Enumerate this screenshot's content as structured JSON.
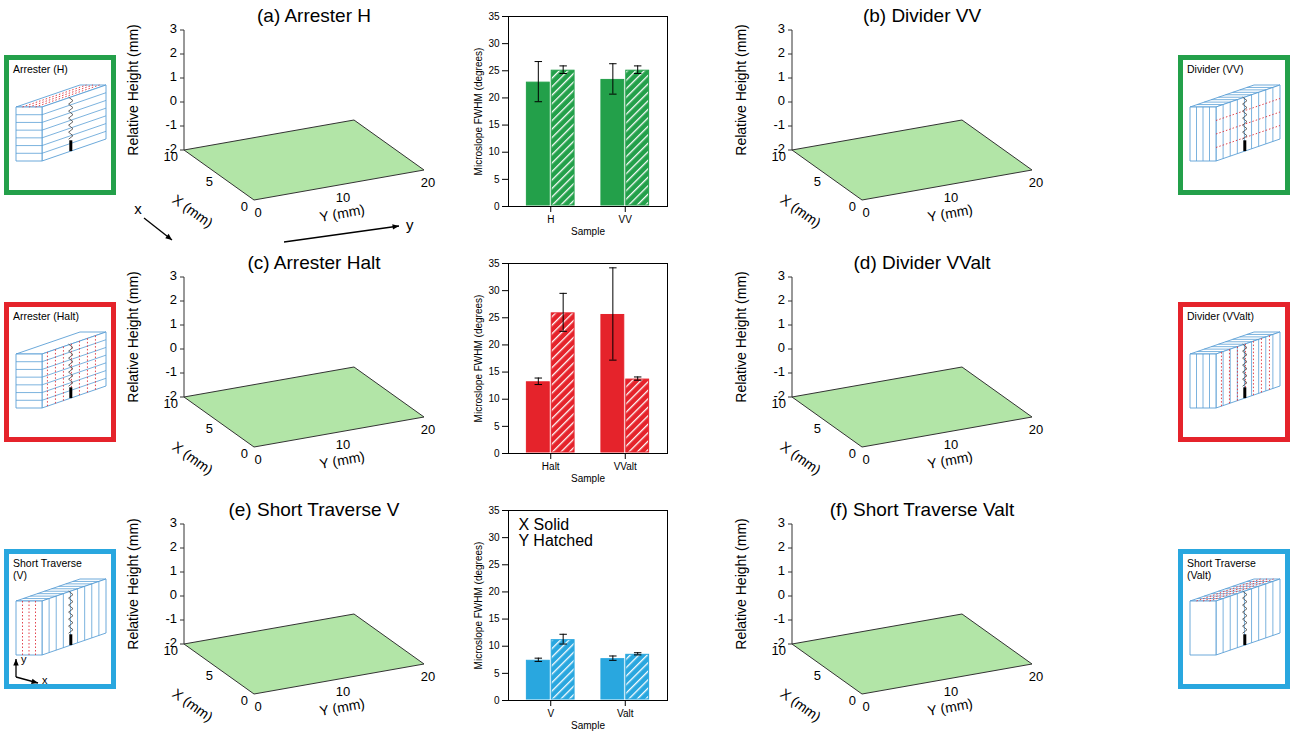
{
  "chart_data": [
    {
      "type": "bar",
      "categories": [
        "H",
        "VV"
      ],
      "xlabel": "Sample",
      "ylabel": "Microslope FWHM (degrees)",
      "ylim": [
        0,
        35
      ],
      "yticks": [
        0,
        5,
        10,
        15,
        20,
        25,
        30,
        35
      ],
      "series": [
        {
          "color": "#23a04a",
          "values": [
            23.0,
            23.5
          ],
          "errors": [
            3.7,
            2.8
          ]
        },
        {
          "color": "#23a04a",
          "values": [
            25.2,
            25.2
          ],
          "errors": [
            0.7,
            0.7
          ]
        }
      ]
    },
    {
      "type": "bar",
      "categories": [
        "Halt",
        "VValt"
      ],
      "xlabel": "Sample",
      "ylabel": "Microslope FWHM (degrees)",
      "ylim": [
        0,
        35
      ],
      "yticks": [
        0,
        5,
        10,
        15,
        20,
        25,
        30,
        35
      ],
      "series": [
        {
          "color": "#e5232b",
          "values": [
            13.3,
            25.7
          ],
          "errors": [
            0.6,
            8.5
          ]
        },
        {
          "color": "#e5232b",
          "values": [
            26.0,
            13.8
          ],
          "errors": [
            3.5,
            0.3
          ]
        }
      ]
    },
    {
      "type": "bar",
      "categories": [
        "V",
        "Valt"
      ],
      "xlabel": "Sample",
      "ylabel": "Microslope FWHM (degrees)",
      "ylim": [
        0,
        35
      ],
      "yticks": [
        0,
        5,
        10,
        15,
        20,
        25,
        30,
        35
      ],
      "annotation": [
        "X Solid",
        "Y Hatched"
      ],
      "series": [
        {
          "color": "#29a7df",
          "values": [
            7.5,
            7.8
          ],
          "errors": [
            0.3,
            0.4
          ]
        },
        {
          "color": "#29a7df",
          "values": [
            11.3,
            8.6
          ],
          "errors": [
            0.9,
            0.2
          ]
        }
      ]
    }
  ],
  "surface_panels": [
    {
      "title": "(a) Arrester H",
      "zlabel": "Relative Height (mm)",
      "zlim": [
        -2,
        3
      ],
      "zticks": [
        -2,
        -1,
        0,
        1,
        2,
        3
      ],
      "xlabel": "X (mm)",
      "xlim": [
        0,
        10
      ],
      "xticks": [
        0,
        5,
        10
      ],
      "ylabel": "Y (mm)",
      "ylim": [
        0,
        20
      ],
      "yticks": [
        0,
        10,
        20
      ],
      "axis_labels": {
        "x": "x",
        "y": "y"
      }
    },
    {
      "title": "(b) Divider VV",
      "zlabel": "Relative Height (mm)",
      "zlim": [
        -2,
        3
      ],
      "zticks": [
        -2,
        -1,
        0,
        1,
        2,
        3
      ],
      "xlabel": "X (mm)",
      "xlim": [
        0,
        10
      ],
      "xticks": [
        0,
        5,
        10
      ],
      "ylabel": "Y (mm)",
      "ylim": [
        0,
        20
      ],
      "yticks": [
        0,
        10,
        20
      ]
    },
    {
      "title": "(c) Arrester Halt",
      "zlabel": "Relative Height (mm)",
      "zlim": [
        -2,
        3
      ],
      "zticks": [
        -2,
        -1,
        0,
        1,
        2,
        3
      ],
      "xlabel": "X (mm)",
      "xlim": [
        0,
        10
      ],
      "xticks": [
        0,
        5,
        10
      ],
      "ylabel": "Y (mm)",
      "ylim": [
        0,
        20
      ],
      "yticks": [
        0,
        10,
        20
      ]
    },
    {
      "title": "(d) Divider VValt",
      "zlabel": "Relative Height (mm)",
      "zlim": [
        -2,
        3
      ],
      "zticks": [
        -2,
        -1,
        0,
        1,
        2,
        3
      ],
      "xlabel": "X (mm)",
      "xlim": [
        0,
        10
      ],
      "xticks": [
        0,
        5,
        10
      ],
      "ylabel": "Y (mm)",
      "ylim": [
        0,
        20
      ],
      "yticks": [
        0,
        10,
        20
      ]
    },
    {
      "title": "(e) Short Traverse V",
      "zlabel": "Relative Height (mm)",
      "zlim": [
        -2,
        3
      ],
      "zticks": [
        -2,
        -1,
        0,
        1,
        2,
        3
      ],
      "xlabel": "X (mm)",
      "xlim": [
        0,
        10
      ],
      "xticks": [
        0,
        5,
        10
      ],
      "ylabel": "Y (mm)",
      "ylim": [
        0,
        20
      ],
      "yticks": [
        0,
        10,
        20
      ]
    },
    {
      "title": "(f) Short Traverse Valt",
      "zlabel": "Relative Height (mm)",
      "zlim": [
        -2,
        3
      ],
      "zticks": [
        -2,
        -1,
        0,
        1,
        2,
        3
      ],
      "xlabel": "X (mm)",
      "xlim": [
        0,
        10
      ],
      "xticks": [
        0,
        5,
        10
      ],
      "ylabel": "Y (mm)",
      "ylim": [
        0,
        20
      ],
      "yticks": [
        0,
        10,
        20
      ]
    }
  ],
  "schematics": [
    {
      "label": "Arrester (H)"
    },
    {
      "label": "Divider (VV)"
    },
    {
      "label": "Arrester (Halt)"
    },
    {
      "label": "Divider (VValt)"
    },
    {
      "label": "Short Traverse (V)",
      "axis_labels": {
        "x": "x",
        "y": "y"
      }
    },
    {
      "label": "Short Traverse (Valt)"
    }
  ]
}
